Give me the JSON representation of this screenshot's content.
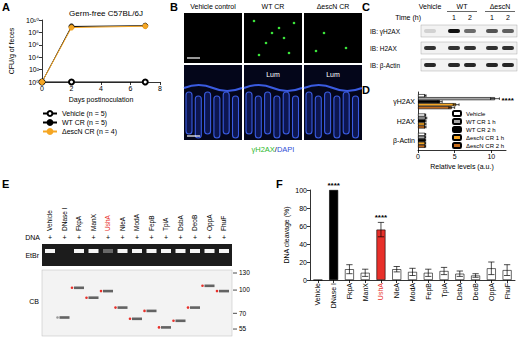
{
  "panel_labels": [
    "A",
    "B",
    "C",
    "D",
    "E",
    "F"
  ],
  "chart_data": [
    {
      "type": "line",
      "title": "Germ-free C57BL/6J",
      "x_label": "Days postinoculation",
      "y_label": "CFU/g of feces",
      "log": "y",
      "grid": false,
      "legend": "bottom",
      "xlim": [
        0,
        8
      ],
      "xticks": [
        0,
        2,
        4,
        6,
        8
      ],
      "ylim": [
        1,
        10000000000
      ],
      "yticks": [
        {
          "value": 1,
          "label": "10⁰"
        },
        {
          "value": 100,
          "label": "10²"
        },
        {
          "value": 10000,
          "label": "10⁴"
        },
        {
          "value": 1000000,
          "label": "10⁶"
        },
        {
          "value": 100000000,
          "label": "10⁸"
        },
        {
          "value": 10000000000,
          "label": "10¹⁰"
        }
      ],
      "x": [
        0,
        2,
        7
      ],
      "series": [
        {
          "name": "Vehicle (n = 5)",
          "color": "#000000",
          "marker": "open_circle",
          "values": [
            1,
            1,
            1
          ]
        },
        {
          "name": "WT CR (n = 5)",
          "color": "#000000",
          "marker": "circle",
          "values": [
            1,
            900000000,
            1200000000
          ]
        },
        {
          "name": "ΔescN CR (n = 4)",
          "color": "#f5a623",
          "marker": "circle",
          "values": [
            1,
            600000000,
            1000000000
          ]
        }
      ]
    },
    {
      "type": "bar",
      "orientation": "horizontal",
      "x_label": "Relative levels (a.u.)",
      "grid": false,
      "legend": "lower right",
      "categories": [
        "γH2AX",
        "H2AX",
        "β-Actin"
      ],
      "xlim": [
        0,
        12
      ],
      "xticks": [
        0,
        5,
        10
      ],
      "series": [
        {
          "name": "Vehicle",
          "color": "#ffffff",
          "values": [
            1,
            1,
            1
          ],
          "errors": [
            0.1,
            0.05,
            0.05
          ]
        },
        {
          "name": "WT CR 1 h",
          "color": "#a6a6a6",
          "values": [
            10.5,
            1.1,
            1
          ],
          "errors": [
            0.6,
            0.1,
            0.05
          ]
        },
        {
          "name": "WT CR 2 h",
          "color": "#000000",
          "values": [
            3,
            1,
            1
          ],
          "errors": [
            0.3,
            0.1,
            0.05
          ]
        },
        {
          "name": "ΔescN CR 1 h",
          "color": "#f5a623",
          "values": [
            5.2,
            1,
            1
          ],
          "errors": [
            0.4,
            0.1,
            0.05
          ]
        },
        {
          "name": "ΔescN CR 2 h",
          "color": "#c26a1b",
          "values": [
            4.6,
            1,
            1
          ],
          "errors": [
            0.4,
            0.1,
            0.05
          ]
        }
      ],
      "annotations": [
        {
          "text": "****",
          "category": "γH2AX",
          "series": "WT CR 1 h"
        }
      ]
    },
    {
      "type": "bar",
      "y_label": "DNA cleavage (%)",
      "grid": false,
      "categories": [
        "Vehicle",
        "DNase I",
        "FkpA",
        "ManX",
        "UshA",
        "NleA",
        "ModA",
        "FepB",
        "TpiA",
        "DsbA",
        "DeoB",
        "OppA",
        "FhuF"
      ],
      "values": [
        0,
        100,
        12,
        8,
        56,
        12,
        9,
        8,
        10,
        7,
        5,
        13,
        11
      ],
      "errors": [
        0,
        0,
        5,
        4,
        8,
        3,
        4,
        4,
        4,
        3,
        2,
        7,
        6
      ],
      "colors": [
        "#ffffff",
        "#000000",
        "#ffffff",
        "#ffffff",
        "#e8302a",
        "#ffffff",
        "#ffffff",
        "#ffffff",
        "#ffffff",
        "#ffffff",
        "#ffffff",
        "#ffffff",
        "#ffffff"
      ],
      "ylim": [
        0,
        100
      ],
      "yticks": [
        0,
        20,
        40,
        60,
        80,
        100
      ],
      "annotations": [
        {
          "text": "****",
          "category": "DNase I"
        },
        {
          "text": "****",
          "category": "UshA"
        }
      ]
    }
  ],
  "image_panels": {
    "B": {
      "columns": [
        {
          "title": "Vehicle control"
        },
        {
          "title": "WT CR",
          "lumen": "Lum"
        },
        {
          "title": "ΔescN CR",
          "lumen": "Lum"
        }
      ],
      "stain": [
        "γH2AX",
        "/",
        "DAPI"
      ]
    },
    "C": {
      "groups": [
        "Vehicle",
        "WT",
        "ΔescN"
      ],
      "time_label": "Time (h)",
      "times": [
        "1",
        "2",
        "1",
        "2"
      ],
      "rows": [
        "IB: γH2AX",
        "IB: H2AX",
        "IB: β-Actin"
      ]
    },
    "E": {
      "row_label": "DNA",
      "lanes": [
        {
          "sign": "+",
          "label": "Vehicle"
        },
        {
          "sign": "+",
          "label": "DNase I"
        },
        {
          "sign": "+",
          "label": "FkpA"
        },
        {
          "sign": "+",
          "label": "ManX"
        },
        {
          "sign": "+",
          "label": "UshA",
          "color": "#e8302a"
        },
        {
          "sign": "+",
          "label": "NleA"
        },
        {
          "sign": "+",
          "label": "ModA"
        },
        {
          "sign": "+",
          "label": "FepB"
        },
        {
          "sign": "+",
          "label": "TpiA"
        },
        {
          "sign": "+",
          "label": "DsbA"
        },
        {
          "sign": "+",
          "label": "DeoB"
        },
        {
          "sign": "+",
          "label": "OppA"
        },
        {
          "sign": "+",
          "label": "FhuF"
        }
      ],
      "stains": [
        "EtBr",
        "CB"
      ],
      "markers": [
        130,
        100,
        70,
        55
      ]
    }
  }
}
